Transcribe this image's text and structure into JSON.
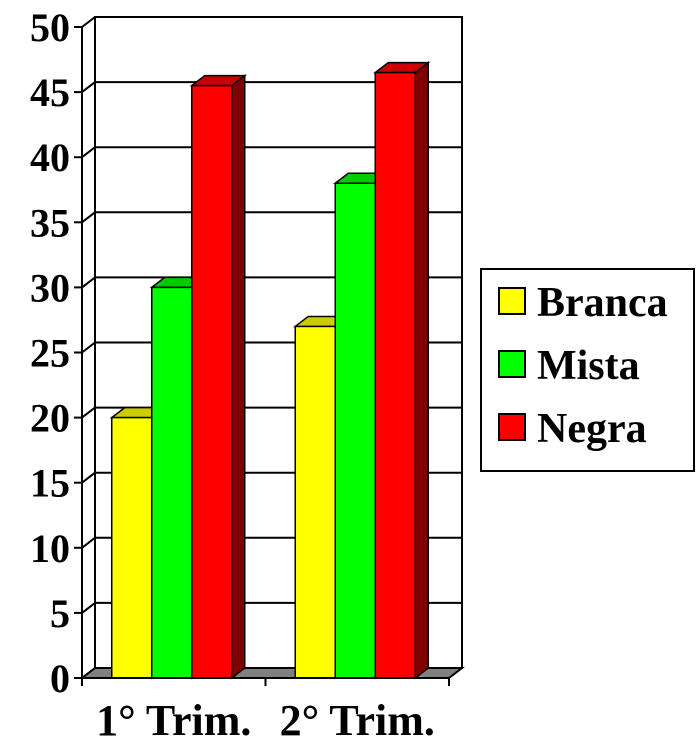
{
  "chart_data": {
    "type": "bar",
    "categories": [
      "1° Trim.",
      "2° Trim."
    ],
    "series": [
      {
        "name": "Branca",
        "values": [
          20,
          27
        ],
        "color": "#FFFF00",
        "top_color": "#CCCC00",
        "side_color": "#999900"
      },
      {
        "name": "Mista",
        "values": [
          30,
          38
        ],
        "color": "#00FF00",
        "top_color": "#00CC00",
        "side_color": "#009900"
      },
      {
        "name": "Negra",
        "values": [
          45.5,
          46.5
        ],
        "color": "#FF0000",
        "top_color": "#CC0000",
        "side_color": "#800000"
      }
    ],
    "y_ticks": [
      "0",
      "5",
      "10",
      "15",
      "20",
      "25",
      "30",
      "35",
      "40",
      "45",
      "50"
    ],
    "ylim": [
      0,
      50
    ],
    "grid": true,
    "legend_position": "right",
    "three_d": true,
    "floor_color": "#808080"
  }
}
